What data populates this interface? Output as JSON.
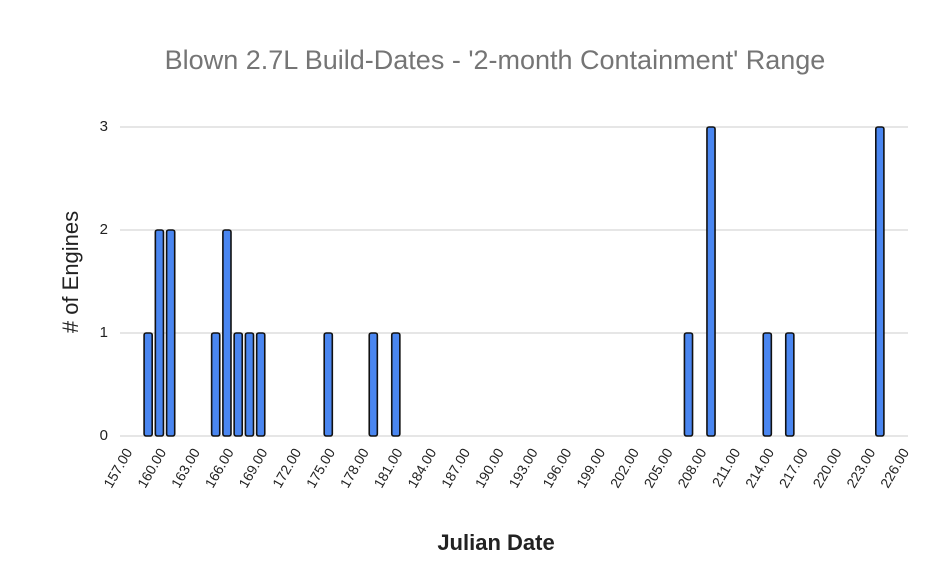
{
  "chart_data": {
    "type": "bar",
    "title": "Blown 2.7L Build-Dates - '2-month Containment' Range",
    "x_label": "Julian Date",
    "y_label": "# of Engines",
    "categories": [
      "157.00",
      null,
      null,
      "160.00",
      null,
      null,
      "163.00",
      null,
      null,
      "166.00",
      null,
      null,
      "169.00",
      null,
      null,
      "172.00",
      null,
      null,
      "175.00",
      null,
      null,
      "178.00",
      null,
      null,
      "181.00",
      null,
      null,
      "184.00",
      null,
      null,
      "187.00",
      null,
      null,
      "190.00",
      null,
      null,
      "193.00",
      null,
      null,
      "196.00",
      null,
      null,
      "199.00",
      null,
      null,
      "202.00",
      null,
      null,
      "205.00",
      null,
      null,
      "208.00",
      null,
      null,
      "211.00",
      null,
      null,
      "214.00",
      null,
      null,
      "217.00",
      null,
      null,
      "220.00",
      null,
      null,
      "223.00",
      null,
      null,
      "226.00"
    ],
    "values": [
      0,
      0,
      1,
      2,
      2,
      0,
      0,
      0,
      1,
      2,
      1,
      1,
      1,
      0,
      0,
      0,
      0,
      0,
      1,
      0,
      0,
      0,
      1,
      0,
      1,
      0,
      0,
      0,
      0,
      0,
      0,
      0,
      0,
      0,
      0,
      0,
      0,
      0,
      0,
      0,
      0,
      0,
      0,
      0,
      0,
      0,
      0,
      0,
      0,
      0,
      1,
      0,
      3,
      0,
      0,
      0,
      0,
      1,
      0,
      1,
      0,
      0,
      0,
      0,
      0,
      0,
      0,
      3,
      0,
      0
    ],
    "color": "#4a86f0",
    "ylim": [
      0,
      3
    ],
    "yticks": [
      0,
      1,
      2,
      3
    ],
    "grid": true
  }
}
